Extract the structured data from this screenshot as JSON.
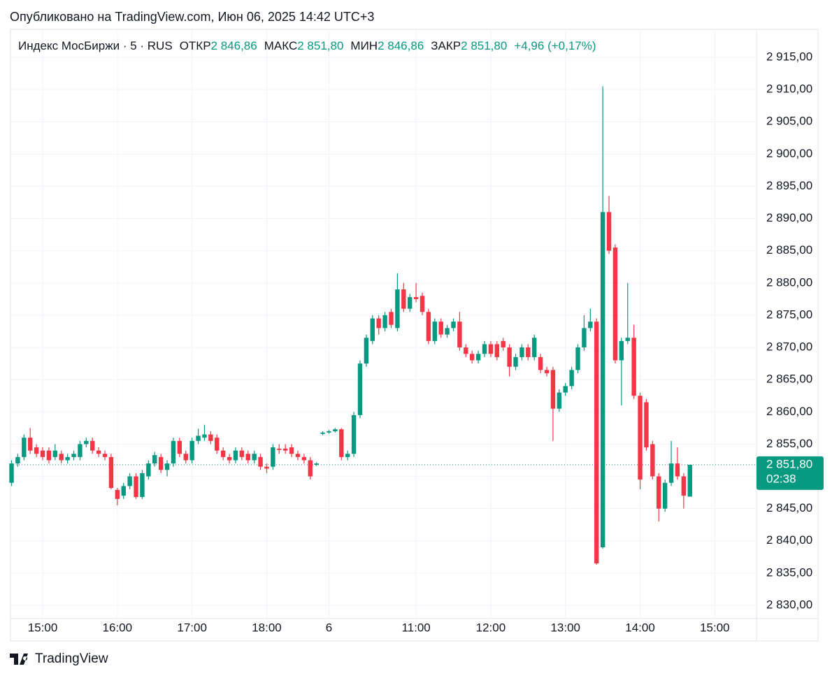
{
  "chart_data": {
    "type": "candlestick",
    "title": "Опубликовано на TradingView.com, Июн 06, 2025 14:42 UTC+3",
    "symbol": "Индекс МосБиржи · 5 · RUS",
    "ohlc_header": [
      {
        "label": "ОТКР",
        "value": "2 846,86"
      },
      {
        "label": "МАКС",
        "value": "2 851,80"
      },
      {
        "label": "МИН",
        "value": "2 846,86"
      },
      {
        "label": "ЗАКР",
        "value": "2 851,80"
      }
    ],
    "change": "+4,96 (+0,17%)",
    "up_color": "#089981",
    "down_color": "#f23645",
    "open": [
      2849,
      2852,
      2853,
      2856,
      2854.5,
      2854,
      2854,
      2853,
      2853.5,
      2852.5,
      2853,
      2853,
      2855,
      2855.5,
      2854,
      2853.5,
      2853,
      2847.9,
      2847,
      2848.5,
      2850,
      2846.8,
      2850,
      2852,
      2853,
      2851,
      2852,
      2855.5,
      2853.5,
      2852.5,
      2855.5,
      2856,
      2856.5,
      2856,
      2854,
      2853,
      2852.5,
      2854,
      2853.5,
      2852.5,
      2853,
      2851.5,
      2851.5,
      2854.3,
      2854.3,
      2854.5,
      2853.5,
      2853,
      2852.5,
      2851.8,
      2856.6,
      2856.8,
      2857,
      2857.3,
      2853,
      2853.5,
      2859.5,
      2867.5,
      2871,
      2874.5,
      2873,
      2875.5,
      2873,
      2879,
      2876,
      2877.8,
      2878,
      2875.5,
      2871,
      2874,
      2872,
      2873,
      2874,
      2870,
      2869,
      2868,
      2869,
      2870.5,
      2870.5,
      2871,
      2870,
      2867,
      2868.5,
      2870,
      2868.5,
      2868.5,
      2866.5,
      2866.5,
      2860.5,
      2863,
      2864,
      2866.5,
      2870,
      2873,
      2874,
      2839,
      2891,
      2885.5,
      2868,
      2871,
      2871.5,
      2862.5,
      2861.5,
      2855,
      2850,
      2845,
      2849,
      2852,
      2850,
      2846.86
    ],
    "high": [
      2852.5,
      2853.5,
      2856.5,
      2857.5,
      2855,
      2854.5,
      2854.5,
      2855,
      2854,
      2853.5,
      2854,
      2855.5,
      2856,
      2856,
      2854.5,
      2854,
      2853.5,
      2848.2,
      2849,
      2850.5,
      2850.5,
      2851,
      2852.5,
      2853.8,
      2853.5,
      2852.5,
      2856,
      2856,
      2854,
      2856,
      2857.4,
      2858,
      2857,
      2856.5,
      2854.5,
      2853.5,
      2854.5,
      2854.5,
      2854,
      2854,
      2853.5,
      2852,
      2855,
      2855,
      2855,
      2855,
      2854,
      2853.5,
      2853,
      2852.2,
      2857,
      2857.2,
      2857.5,
      2857.5,
      2854,
      2860,
      2868,
      2872,
      2875,
      2875,
      2875.5,
      2876,
      2881.5,
      2880,
      2878.3,
      2880,
      2878.5,
      2876,
      2874.5,
      2874.5,
      2873.5,
      2874.5,
      2875.5,
      2870.5,
      2869.5,
      2869.5,
      2871,
      2871,
      2871,
      2871.5,
      2870.5,
      2869,
      2870.5,
      2870.5,
      2872,
      2869,
      2867,
      2867,
      2863.5,
      2864.5,
      2867,
      2870.5,
      2875,
      2876,
      2874.5,
      2910.5,
      2893.5,
      2886,
      2871.5,
      2880,
      2873.5,
      2863,
      2862,
      2855.5,
      2850.5,
      2849.5,
      2855.5,
      2854.5,
      2850.5,
      2851.8
    ],
    "low": [
      2848.5,
      2851.5,
      2852.5,
      2853.5,
      2853,
      2852.5,
      2852,
      2852.5,
      2852,
      2852,
      2852.5,
      2852.5,
      2854.5,
      2853.5,
      2853,
      2852.5,
      2848,
      2845.5,
      2846.5,
      2848,
      2846.5,
      2846.5,
      2849.5,
      2851.5,
      2850.5,
      2850,
      2851.5,
      2853,
      2852,
      2852,
      2855,
      2855.5,
      2855,
      2853.5,
      2852.5,
      2852,
      2852,
      2852.5,
      2852,
      2852,
      2851,
      2850.5,
      2851,
      2853.5,
      2853.5,
      2853,
      2852.5,
      2852,
      2849.5,
      2851.6,
      2856.4,
      2856.6,
      2856.8,
      2852.5,
      2852.5,
      2853,
      2859,
      2867,
      2870.5,
      2872,
      2872.5,
      2873,
      2872.5,
      2875.5,
      2875.5,
      2877,
      2875,
      2870.5,
      2870.5,
      2871.5,
      2871.5,
      2872.5,
      2869.5,
      2868.5,
      2867.5,
      2867.5,
      2868.5,
      2868.5,
      2868,
      2869.5,
      2865.5,
      2866.5,
      2868,
      2868,
      2868,
      2866,
      2865.5,
      2855.5,
      2860,
      2862.5,
      2863.5,
      2866,
      2869.5,
      2872.5,
      2836.3,
      2838.8,
      2884.5,
      2867.5,
      2861,
      2870.5,
      2862,
      2848,
      2854,
      2849.5,
      2843,
      2844.5,
      2848.5,
      2849.5,
      2845,
      2846.86
    ],
    "close": [
      2852,
      2853,
      2856,
      2854,
      2853.5,
      2853,
      2852.5,
      2854,
      2852.5,
      2853,
      2853.5,
      2855,
      2855.5,
      2854,
      2853.5,
      2853,
      2848.2,
      2846.5,
      2848.5,
      2850,
      2846.8,
      2850.5,
      2852,
      2853.3,
      2851,
      2852,
      2855.5,
      2853.5,
      2852.5,
      2855.5,
      2856.3,
      2856.5,
      2855.5,
      2854,
      2853,
      2852.5,
      2854,
      2853,
      2852.5,
      2853.5,
      2851.5,
      2851.2,
      2854.5,
      2854.1,
      2854,
      2853.5,
      2853,
      2852.5,
      2850,
      2852,
      2856.8,
      2857,
      2857.3,
      2853,
      2853.5,
      2859.5,
      2867.5,
      2871.5,
      2874.5,
      2873,
      2875,
      2873.5,
      2879,
      2876,
      2877.8,
      2877.5,
      2875.5,
      2871,
      2874,
      2872,
      2873,
      2874,
      2870,
      2869,
      2868,
      2869,
      2870.5,
      2869,
      2868.5,
      2870,
      2867,
      2868.5,
      2870,
      2868.5,
      2871.5,
      2866.5,
      2866,
      2860.5,
      2863,
      2864,
      2866.5,
      2870,
      2873,
      2874,
      2836.5,
      2891,
      2885,
      2868,
      2871,
      2871.5,
      2862.5,
      2849.5,
      2854.5,
      2850,
      2845,
      2849,
      2852,
      2850,
      2847,
      2851.8
    ],
    "last_price": {
      "value": 2851.8,
      "label": "2 851,80"
    },
    "countdown": "02:38",
    "xlim": [
      -0.17,
      119.7
    ],
    "xticks": [
      {
        "value": 5,
        "label": "15:00"
      },
      {
        "value": 17,
        "label": "16:00"
      },
      {
        "value": 29,
        "label": "17:00"
      },
      {
        "value": 41,
        "label": "18:00"
      },
      {
        "value": 51,
        "label": "6"
      },
      {
        "value": 65,
        "label": "11:00"
      },
      {
        "value": 77,
        "label": "12:00"
      },
      {
        "value": 89,
        "label": "13:00"
      },
      {
        "value": 101,
        "label": "14:00"
      },
      {
        "value": 113,
        "label": "15:00"
      }
    ],
    "ylim": [
      2827.94,
      2918.47
    ],
    "yticks": [
      {
        "value": 2830,
        "label": "2 830,00"
      },
      {
        "value": 2835,
        "label": "2 835,00"
      },
      {
        "value": 2840,
        "label": "2 840,00"
      },
      {
        "value": 2845,
        "label": "2 845,00"
      },
      {
        "value": 2850,
        "label": "2 850,00"
      },
      {
        "value": 2855,
        "label": "2 855,00"
      },
      {
        "value": 2860,
        "label": "2 860,00"
      },
      {
        "value": 2865,
        "label": "2 865,00"
      },
      {
        "value": 2870,
        "label": "2 870,00"
      },
      {
        "value": 2875,
        "label": "2 875,00"
      },
      {
        "value": 2880,
        "label": "2 880,00"
      },
      {
        "value": 2885,
        "label": "2 885,00"
      },
      {
        "value": 2890,
        "label": "2 890,00"
      },
      {
        "value": 2895,
        "label": "2 895,00"
      },
      {
        "value": 2900,
        "label": "2 900,00"
      },
      {
        "value": 2905,
        "label": "2 905,00"
      },
      {
        "value": 2910,
        "label": "2 910,00"
      },
      {
        "value": 2915,
        "label": "2 915,00"
      }
    ],
    "grid": true,
    "brand": "TradingView"
  }
}
